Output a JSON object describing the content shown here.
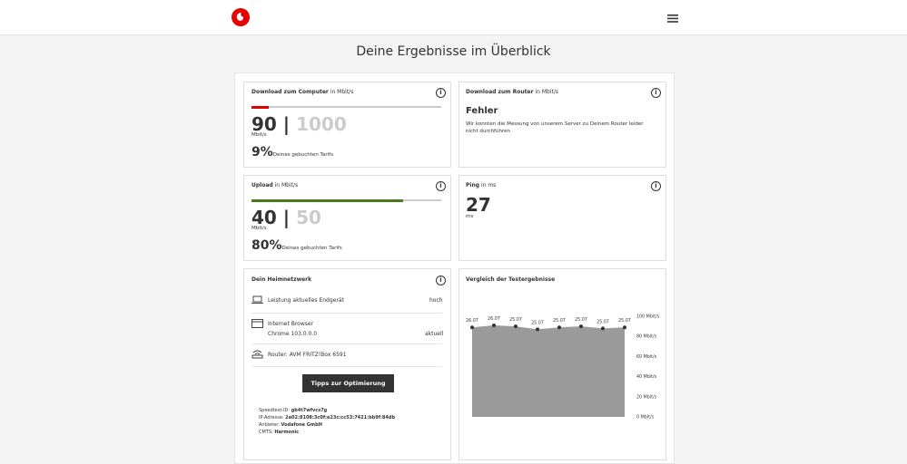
{
  "header": {
    "title": "Deine Ergebnisse im Überblick"
  },
  "download_computer": {
    "label": "Download zum Computer",
    "unit_label": "in Mbit/s",
    "value": 90,
    "max": 1000,
    "unit": "Mbit/s",
    "percent": "9%",
    "percent_text": "Deines gebuchten Tarifs",
    "color": "#e60000"
  },
  "download_router": {
    "label": "Download zum Router",
    "unit_label": "in Mbit/s",
    "status": "Fehler",
    "message": "Wir konnten die Messung von unserem Server zu Deinem Router leider nicht durchführen"
  },
  "upload": {
    "label": "Upload",
    "unit_label": "in Mbit/s",
    "value": 40,
    "max": 50,
    "unit": "Mbit/s",
    "percent": "80%",
    "percent_text": "Deines gebuchten Tarifs",
    "color": "#4a7a1b"
  },
  "ping": {
    "label": "Ping",
    "unit_label": "in ms",
    "value": "27",
    "unit": "ms"
  },
  "home_network": {
    "title": "Dein Heimnetzwerk",
    "rows": [
      {
        "label": "Leistung aktuelles Endgerät",
        "status": "hoch"
      },
      {
        "label": "Internet Browser",
        "detail": "Chrome 103.0.0.0",
        "status": "aktuell"
      },
      {
        "label": "Router: AVM FRITZ!Box 6591"
      }
    ],
    "button": "Tipps zur Optimierung",
    "info": [
      {
        "label": "Speedtest-ID:",
        "value": "gb4t7wfvcs7g"
      },
      {
        "label": "IP-Adresse:",
        "value": "2a02:8108:3c0f:e23c:cc53:7421:bb9f:84db"
      },
      {
        "label": "Anbieter:",
        "value": "Vodafone GmbH"
      },
      {
        "label": "CMTS:",
        "value": "Harmonic"
      }
    ]
  },
  "chart_data": {
    "type": "area",
    "title": "Vergleich der Testergebnisse",
    "categories": [
      "26.07",
      "26.07",
      "25.07",
      "25.07",
      "25.07",
      "25.07",
      "25.07",
      "25.07"
    ],
    "values": [
      89,
      91,
      90,
      87,
      89,
      90,
      88,
      89
    ],
    "color": "#9a9a9a",
    "ylim": [
      0,
      100
    ],
    "yticks": [
      {
        "value": 0,
        "label": "0 Mbit/s"
      },
      {
        "value": 20,
        "label": "20 Mbit/s"
      },
      {
        "value": 40,
        "label": "40 Mbit/s"
      },
      {
        "value": 60,
        "label": "60 Mbit/s"
      },
      {
        "value": 80,
        "label": "80 Mbit/s"
      },
      {
        "value": 100,
        "label": "100 Mbit/s"
      }
    ]
  }
}
